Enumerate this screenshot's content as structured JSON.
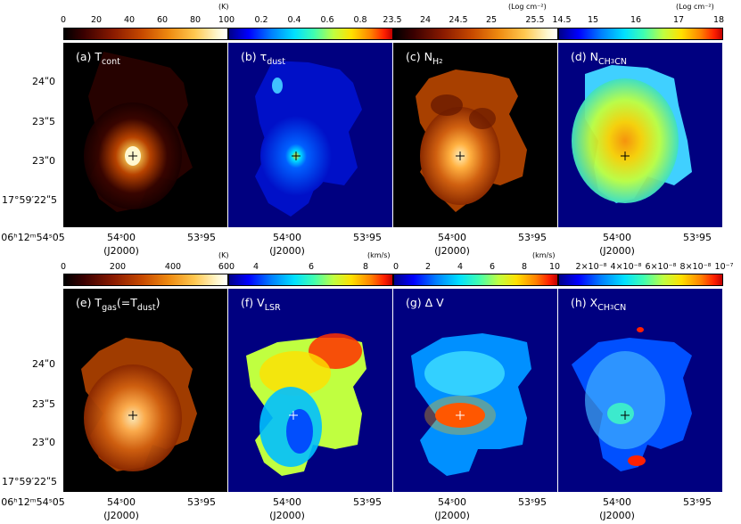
{
  "colorbars_top": [
    {
      "ticks": [
        "0",
        "20",
        "40",
        "60",
        "80",
        "100"
      ],
      "unit": "(K)"
    },
    {
      "ticks": [
        "0.2",
        "0.4",
        "0.6",
        "0.8"
      ],
      "unit": ""
    },
    {
      "ticks": [
        "23.5",
        "24",
        "24.5",
        "25",
        "25.5"
      ],
      "unit": "(Log cm⁻²)"
    },
    {
      "ticks": [
        "14.5",
        "15",
        "16",
        "17",
        "18"
      ],
      "unit": "(Log cm⁻²)"
    }
  ],
  "colorbars_bottom": [
    {
      "ticks": [
        "0",
        "200",
        "400",
        "600"
      ],
      "unit": "(K)"
    },
    {
      "ticks": [
        "4",
        "6",
        "8"
      ],
      "unit": "(km/s)"
    },
    {
      "ticks": [
        "0",
        "2",
        "4",
        "6",
        "8",
        "10"
      ],
      "unit": "(km/s)"
    },
    {
      "ticks": [
        "2×10⁻⁸",
        "4×10⁻⁸",
        "6×10⁻⁸",
        "8×10⁻⁸",
        "10⁻⁷"
      ],
      "unit": ""
    }
  ],
  "panels_top": [
    {
      "label": "(a) T",
      "sub": "cont",
      "sub2": "",
      "tail": ""
    },
    {
      "label": "(b) τ",
      "sub": "dust",
      "sub2": "",
      "tail": ""
    },
    {
      "label": "(c) N",
      "sub": "H",
      "sub2": "2",
      "tail": ""
    },
    {
      "label": "(d) N",
      "sub": "CH",
      "sub2": "3",
      "tail": "CN"
    }
  ],
  "panels_bottom": [
    {
      "label": "(e) T",
      "sub": "gas",
      "mid": "(=T",
      "sub3": "dust",
      "tail": ")"
    },
    {
      "label": "(f) V",
      "sub": "LSR",
      "mid": "",
      "sub3": "",
      "tail": ""
    },
    {
      "label": "(g) Δ V",
      "sub": "",
      "mid": "",
      "sub3": "",
      "tail": ""
    },
    {
      "label": "(h) X",
      "sub": "CH",
      "mid": "3",
      "sub3": "",
      "tail": "CN"
    }
  ],
  "axes": {
    "y_ticks": [
      "24ʺ0",
      "23ʺ5",
      "23ʺ0",
      "17°59′22ʺ5"
    ],
    "x_ticks_first": [
      "06ʰ12ᵐ54ˢ05",
      "54ˢ00",
      "53ˢ95"
    ],
    "x_ticks": [
      "54ˢ00",
      "53ˢ95"
    ],
    "x_label": "(J2000)"
  },
  "colors": {
    "dark_bg": "#000000",
    "jet_bg": "#000080"
  }
}
